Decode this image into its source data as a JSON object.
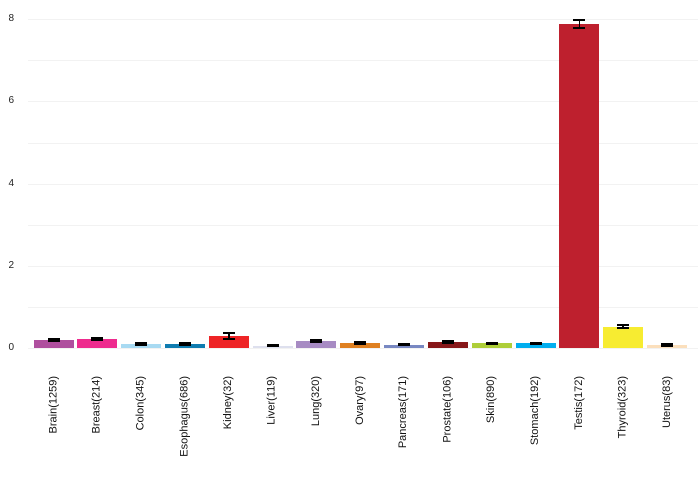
{
  "chart_data": {
    "type": "bar",
    "title": "",
    "xlabel": "",
    "ylabel": "",
    "ylim": [
      0,
      8
    ],
    "yticks": [
      0,
      2,
      4,
      6,
      8
    ],
    "grid_interval": 1,
    "grid_on": true,
    "legend": "none",
    "background_color": "#ffffff",
    "gridline_color": "#f2f2f2",
    "errorbar_color": "#000000",
    "tissues": [
      "Brain",
      "Breast",
      "Colon",
      "Esophagus",
      "Kidney",
      "Liver",
      "Lung",
      "Ovary",
      "Pancreas",
      "Prostate",
      "Skin",
      "Stomach",
      "Testis",
      "Thyroid",
      "Uterus"
    ],
    "sample_counts": [
      1259,
      214,
      345,
      686,
      32,
      119,
      320,
      97,
      171,
      106,
      890,
      192,
      172,
      323,
      83
    ],
    "categories": [
      "Brain(1259)",
      "Breast(214)",
      "Colon(345)",
      "Esophagus(686)",
      "Kidney(32)",
      "Liver(119)",
      "Lung(320)",
      "Ovary(97)",
      "Pancreas(171)",
      "Prostate(106)",
      "Skin(890)",
      "Stomach(192)",
      "Testis(172)",
      "Thyroid(323)",
      "Uterus(83)"
    ],
    "values": [
      0.19,
      0.22,
      0.1,
      0.1,
      0.3,
      0.06,
      0.18,
      0.12,
      0.08,
      0.15,
      0.11,
      0.11,
      7.88,
      0.52,
      0.08
    ],
    "errors": [
      0.03,
      0.03,
      0.02,
      0.015,
      0.07,
      0.015,
      0.025,
      0.02,
      0.015,
      0.03,
      0.02,
      0.02,
      0.09,
      0.045,
      0.02
    ],
    "bar_colors": [
      "#AF4F9E",
      "#EE2B8E",
      "#A8DAF2",
      "#0F7CB0",
      "#EE2426",
      "#DEE0EE",
      "#A78BC3",
      "#DF8021",
      "#7888C2",
      "#871719",
      "#AECE38",
      "#00AEEF",
      "#BE202E",
      "#F7EC31",
      "#FBDFBC"
    ]
  }
}
